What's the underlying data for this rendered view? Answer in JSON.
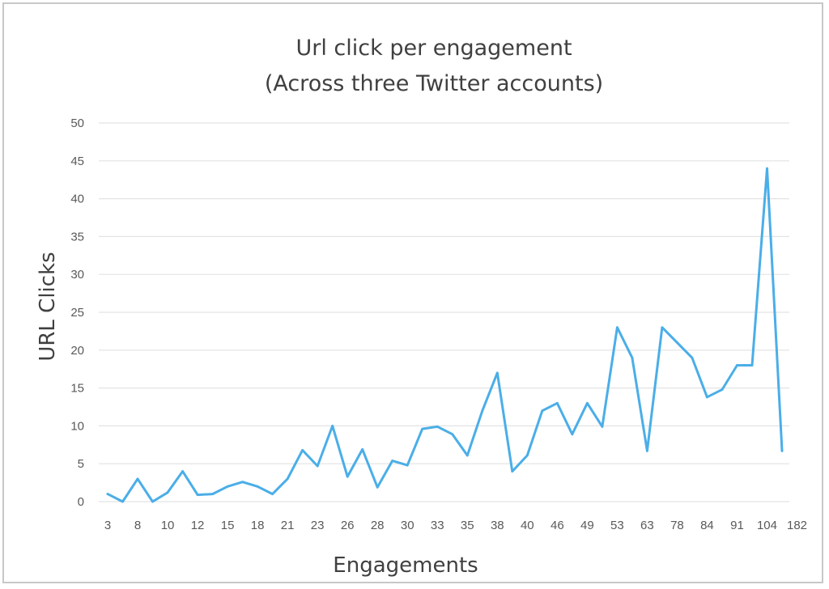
{
  "chart_data": {
    "type": "line",
    "title_lines": [
      "Url click per engagement",
      "(Across three Twitter accounts)"
    ],
    "xlabel": "Engagements",
    "ylabel": "URL Clicks",
    "ylim": [
      0,
      50
    ],
    "y_ticks": [
      0,
      5,
      10,
      15,
      20,
      25,
      30,
      35,
      40,
      45,
      50
    ],
    "grid": true,
    "legend": "none",
    "line_color": "#4aaee8",
    "x_tick_labels": [
      "3",
      "8",
      "10",
      "12",
      "15",
      "18",
      "21",
      "23",
      "26",
      "28",
      "30",
      "33",
      "35",
      "38",
      "40",
      "46",
      "49",
      "53",
      "63",
      "78",
      "84",
      "91",
      "104",
      "182"
    ],
    "values": [
      1,
      0,
      3,
      0,
      1.2,
      4,
      0.9,
      1,
      2,
      2.6,
      2,
      1,
      3,
      6.8,
      4.7,
      10,
      3.3,
      6.9,
      1.9,
      5.4,
      4.8,
      9.6,
      9.9,
      8.9,
      6.1,
      12,
      17,
      4,
      6.1,
      12,
      13,
      8.9,
      13,
      9.9,
      23,
      19,
      6.7,
      23,
      21,
      19,
      13.8,
      14.8,
      18,
      18,
      44,
      6.7
    ]
  }
}
